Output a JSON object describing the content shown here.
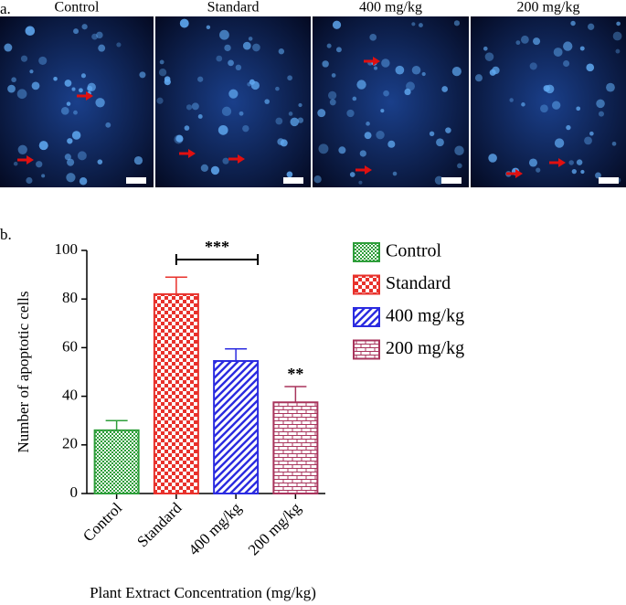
{
  "panel_a": {
    "label": "a.",
    "titles": [
      "Control",
      "Standard",
      "400 mg/kg",
      "200 mg/kg"
    ]
  },
  "panel_b_label": "b.",
  "chart_data": {
    "type": "bar",
    "categories": [
      "Control",
      "Standard",
      "400 mg/kg",
      "200 mg/kg"
    ],
    "values": [
      26,
      82,
      54.5,
      37.5
    ],
    "errors": [
      4,
      7,
      5,
      6.5
    ],
    "colors": [
      "#2e9e3a",
      "#e8312b",
      "#2b2be0",
      "#a8345c"
    ],
    "ylim": [
      0,
      100
    ],
    "yticks": [
      0,
      20,
      40,
      60,
      80,
      100
    ],
    "y_label": "Number of apoptotic cells",
    "x_label": "Plant Extract Concentration (mg/kg)",
    "annotations": [
      "***",
      "**"
    ],
    "legend": "right"
  }
}
